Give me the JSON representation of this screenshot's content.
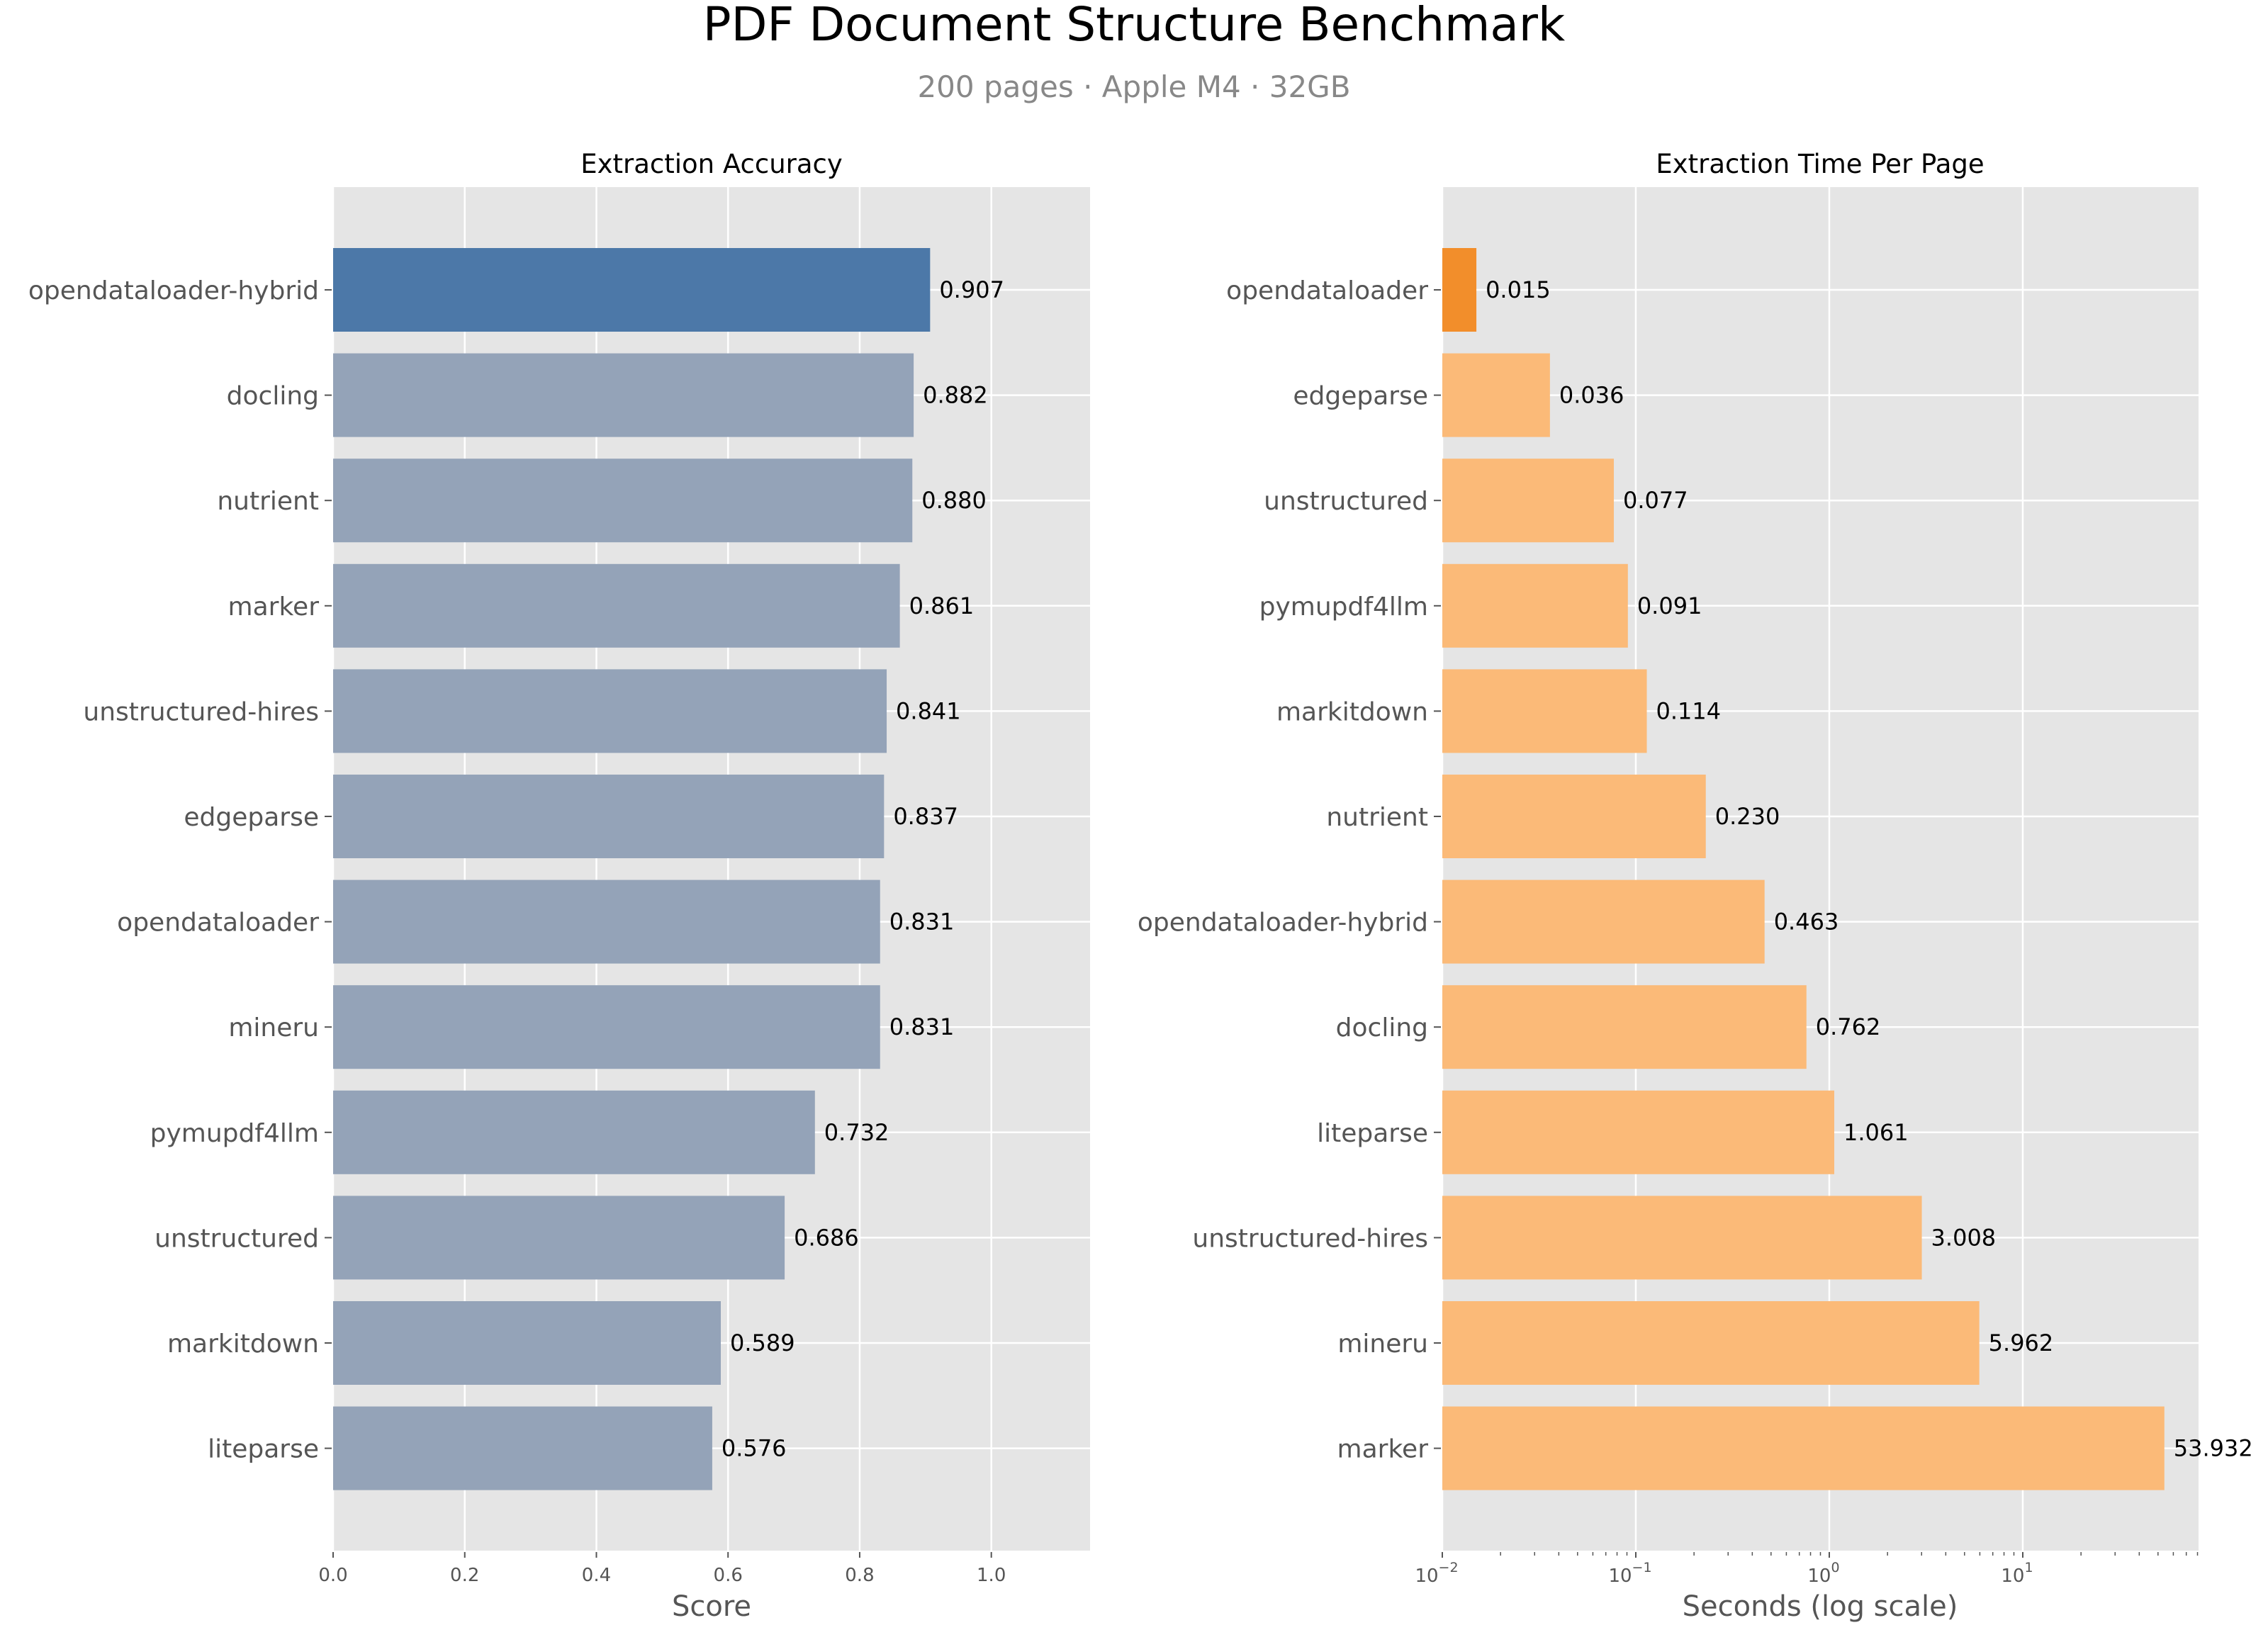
{
  "figure": {
    "title": "PDF Document Structure Benchmark",
    "subtitle": "200 pages · Apple M4 · 32GB",
    "background": "#FFFFFF",
    "axes_background": "#E5E5E5",
    "grid_color": "#FFFFFF"
  },
  "colors": {
    "accuracy_highlight": "#4C78A8",
    "accuracy_default": "#94A3B8",
    "time_highlight": "#F28E2B",
    "time_default": "#FBBA78"
  },
  "chart_data": [
    {
      "type": "bar",
      "orientation": "horizontal",
      "title": "Extraction Accuracy",
      "xlabel": "Score",
      "ylabel": "",
      "xlim": [
        0,
        1.15
      ],
      "xticks": [
        "0.0",
        "0.2",
        "0.4",
        "0.6",
        "0.8",
        "1.0"
      ],
      "xtick_values": [
        0,
        0.2,
        0.4,
        0.6,
        0.8,
        1.0
      ],
      "grid": true,
      "highlight": "opendataloader-hybrid",
      "categories": [
        "opendataloader-hybrid",
        "docling",
        "nutrient",
        "marker",
        "unstructured-hires",
        "edgeparse",
        "opendataloader",
        "mineru",
        "pymupdf4llm",
        "unstructured",
        "markitdown",
        "liteparse"
      ],
      "values": [
        0.907,
        0.882,
        0.88,
        0.861,
        0.841,
        0.837,
        0.831,
        0.831,
        0.732,
        0.686,
        0.589,
        0.576
      ],
      "value_labels": [
        "0.907",
        "0.882",
        "0.880",
        "0.861",
        "0.841",
        "0.837",
        "0.831",
        "0.831",
        "0.732",
        "0.686",
        "0.589",
        "0.576"
      ]
    },
    {
      "type": "bar",
      "orientation": "horizontal",
      "title": "Extraction Time Per Page",
      "xlabel": "Seconds (log scale)",
      "ylabel": "",
      "xscale": "log",
      "xlim": [
        0.01,
        81
      ],
      "xticks": [
        {
          "base": "10",
          "exp": "−2"
        },
        {
          "base": "10",
          "exp": "−1"
        },
        {
          "base": "10",
          "exp": "0"
        },
        {
          "base": "10",
          "exp": "1"
        }
      ],
      "xtick_values": [
        0.01,
        0.1,
        1,
        10
      ],
      "grid": true,
      "highlight": "opendataloader",
      "categories": [
        "opendataloader",
        "edgeparse",
        "unstructured",
        "pymupdf4llm",
        "markitdown",
        "nutrient",
        "opendataloader-hybrid",
        "docling",
        "liteparse",
        "unstructured-hires",
        "mineru",
        "marker"
      ],
      "values": [
        0.015,
        0.036,
        0.077,
        0.091,
        0.114,
        0.23,
        0.463,
        0.762,
        1.061,
        3.008,
        5.962,
        53.932
      ],
      "value_labels": [
        "0.015",
        "0.036",
        "0.077",
        "0.091",
        "0.114",
        "0.230",
        "0.463",
        "0.762",
        "1.061",
        "3.008",
        "5.962",
        "53.932"
      ]
    }
  ]
}
